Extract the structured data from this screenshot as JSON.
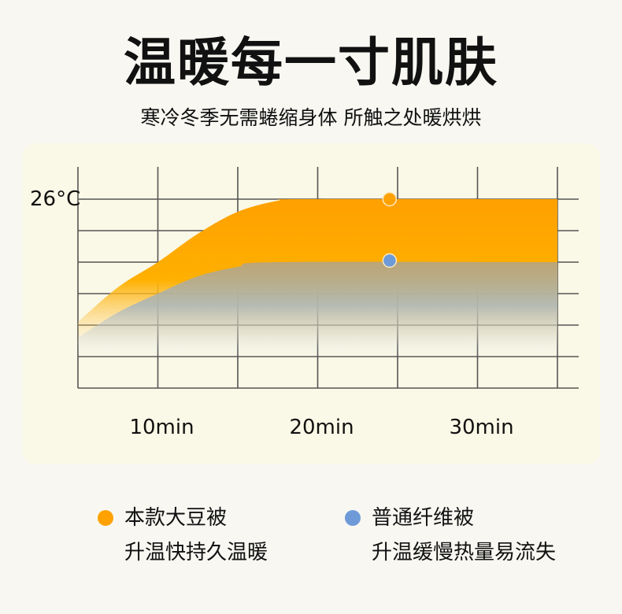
{
  "header": {
    "title": "温暖每一寸肌肤",
    "subtitle": "寒冷冬季无需蜷缩身体 所触之处暖烘烘"
  },
  "chart_data": {
    "type": "area",
    "title": "",
    "xlabel": "",
    "ylabel": "",
    "y_tick_label": "26°C",
    "x_tick_labels": [
      "10min",
      "20min",
      "30min"
    ],
    "x_ticks": [
      10,
      20,
      30
    ],
    "xlim": [
      5,
      35
    ],
    "ylim": [
      20,
      26
    ],
    "grid": true,
    "legend_placement": "bottom",
    "series": [
      {
        "name": "本款大豆被",
        "description": "升温快持久温暖",
        "color": "#ffa200",
        "points": [
          [
            5,
            22.1
          ],
          [
            7.5,
            23.2
          ],
          [
            10,
            24.0
          ],
          [
            12.5,
            24.9
          ],
          [
            15,
            25.6
          ],
          [
            17.5,
            25.95
          ],
          [
            19,
            26
          ],
          [
            35,
            26
          ]
        ],
        "marker": [
          24.5,
          26
        ]
      },
      {
        "name": "普通纤维被",
        "description": "升温缓慢热量易流失",
        "color": "#6e9bd8",
        "points": [
          [
            5,
            21.6
          ],
          [
            7.5,
            22.4
          ],
          [
            10,
            23.0
          ],
          [
            12.5,
            23.55
          ],
          [
            15,
            23.85
          ],
          [
            17.5,
            24
          ],
          [
            35,
            24
          ]
        ],
        "marker": [
          24.5,
          24.05
        ]
      }
    ]
  }
}
